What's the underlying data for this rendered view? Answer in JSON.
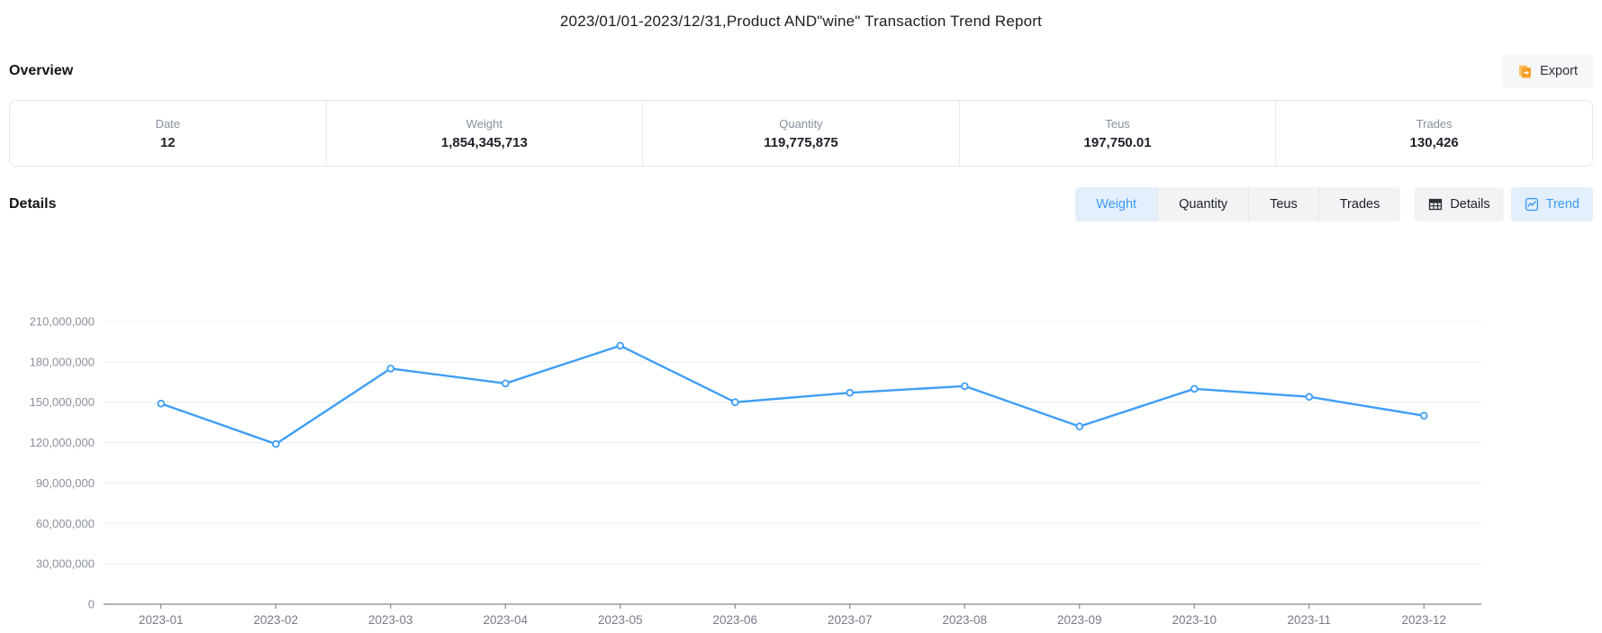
{
  "page": {
    "title": "2023/01/01-2023/12/31,Product AND\"wine\" Transaction Trend Report"
  },
  "overview": {
    "heading": "Overview",
    "export_label": "Export",
    "stats": [
      {
        "label": "Date",
        "value": "12"
      },
      {
        "label": "Weight",
        "value": "1,854,345,713"
      },
      {
        "label": "Quantity",
        "value": "119,775,875"
      },
      {
        "label": "Teus",
        "value": "197,750.01"
      },
      {
        "label": "Trades",
        "value": "130,426"
      }
    ]
  },
  "details": {
    "heading": "Details",
    "metric_tabs": [
      {
        "label": "Weight"
      },
      {
        "label": "Quantity"
      },
      {
        "label": "Teus"
      },
      {
        "label": "Trades"
      }
    ],
    "active_metric_index": 0,
    "view_buttons": [
      {
        "label": "Details",
        "icon": "table-icon"
      },
      {
        "label": "Trend",
        "icon": "line-chart-icon"
      }
    ],
    "active_view_index": 1
  },
  "colors": {
    "accent_blue": "#3c9bf4",
    "tab_bg": "#f2f3f5",
    "tab_active_bg": "#e4effd",
    "line_blue": "#3f9ef5",
    "gridline": "#e9ecf2",
    "axis_gray": "#83878e",
    "export_icon_orange": "#f59f27"
  },
  "chart_data": {
    "type": "line",
    "title": "",
    "xlabel": "",
    "ylabel": "",
    "categories": [
      "2023-01",
      "2023-02",
      "2023-03",
      "2023-04",
      "2023-05",
      "2023-06",
      "2023-07",
      "2023-08",
      "2023-09",
      "2023-10",
      "2023-11",
      "2023-12"
    ],
    "series": [
      {
        "name": "Weight",
        "values": [
          149000000,
          119000000,
          175000000,
          164000000,
          192000000,
          150000000,
          157000000,
          162000000,
          132000000,
          160000000,
          154000000,
          140000000
        ]
      }
    ],
    "ylim": [
      0,
      210000000
    ],
    "ytick_step": 30000000,
    "grid": true,
    "legend": false,
    "marker": "hollow-circle"
  }
}
